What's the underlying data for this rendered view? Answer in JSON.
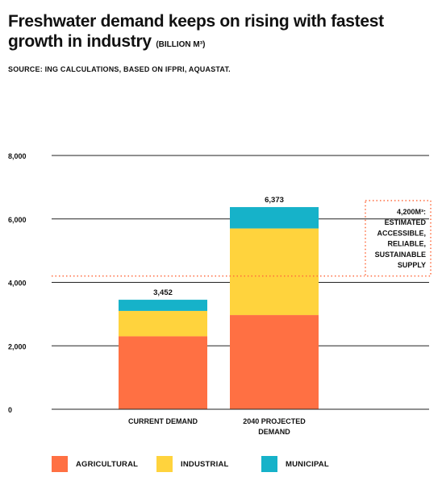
{
  "header": {
    "title": "Freshwater demand keeps on rising with fastest growth in industry",
    "unit": "(BILLION M³)",
    "source": "SOURCE: ING CALCULATIONS, BASED ON IFPRI, AQUASTAT."
  },
  "colors": {
    "agricultural": "#ff7043",
    "industrial": "#ffd33d",
    "municipal": "#16b2c9",
    "threshold": "#ff6a3d"
  },
  "chart_data": {
    "type": "bar",
    "stacked": true,
    "categories": [
      "CURRENT DEMAND",
      "2040 PROJECTED DEMAND"
    ],
    "category_lines": [
      [
        "CURRENT DEMAND"
      ],
      [
        "2040 PROJECTED",
        "DEMAND"
      ]
    ],
    "series": [
      {
        "name": "AGRICULTURAL",
        "values": [
          2300,
          2970
        ]
      },
      {
        "name": "INDUSTRIAL",
        "values": [
          800,
          2730
        ]
      },
      {
        "name": "MUNICIPAL",
        "values": [
          352,
          673
        ]
      }
    ],
    "totals": [
      "3,452",
      "6,373"
    ],
    "yticks": [
      0,
      2000,
      4000,
      6000,
      8000
    ],
    "ytick_labels": [
      "0",
      "2,000",
      "4,000",
      "6,000",
      "8,000"
    ],
    "ylim": [
      0,
      8000
    ],
    "grid": true,
    "threshold": {
      "value": 4200,
      "label_lines": [
        "4,200M³:",
        "ESTIMATED",
        "ACCESSIBLE,",
        "RELIABLE,",
        "SUSTAINABLE",
        "SUPPLY"
      ]
    },
    "legend_position": "bottom"
  }
}
